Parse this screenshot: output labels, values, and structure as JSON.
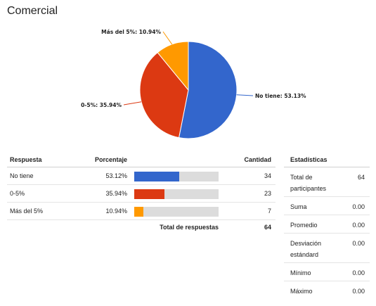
{
  "title": "Comercial",
  "chart_data": {
    "type": "pie",
    "slices": [
      {
        "label": "No tiene",
        "value": 53.13,
        "display": "No tiene: 53.13%",
        "color": "#3366cc"
      },
      {
        "label": "0-5%",
        "value": 35.94,
        "display": "0-5%: 35.94%",
        "color": "#dc3912"
      },
      {
        "label": "Más del 5%",
        "value": 10.94,
        "display": "Más del 5%: 10.94%",
        "color": "#ff9900"
      }
    ]
  },
  "responses": {
    "headers": {
      "respuesta": "Respuesta",
      "porcentaje": "Porcentaje",
      "cantidad": "Cantidad"
    },
    "rows": [
      {
        "respuesta": "No tiene",
        "porcentaje": "53.12%",
        "fraction": 0.5312,
        "cantidad": "34",
        "color": "#3366cc"
      },
      {
        "respuesta": "0-5%",
        "porcentaje": "35.94%",
        "fraction": 0.3594,
        "cantidad": "23",
        "color": "#dc3912"
      },
      {
        "respuesta": "Más del 5%",
        "porcentaje": "10.94%",
        "fraction": 0.1094,
        "cantidad": "7",
        "color": "#ff9900"
      }
    ],
    "total_label": "Total de respuestas",
    "total_value": "64"
  },
  "stats": {
    "header": "Estadísticas",
    "rows": [
      {
        "label": "Total de participantes",
        "value": "64"
      },
      {
        "label": "Suma",
        "value": "0.00"
      },
      {
        "label": "Promedio",
        "value": "0.00"
      },
      {
        "label": "Desviación estándard",
        "value": "0.00"
      },
      {
        "label": "Mínimo",
        "value": "0.00"
      },
      {
        "label": "Máximo",
        "value": "0.00"
      }
    ]
  }
}
